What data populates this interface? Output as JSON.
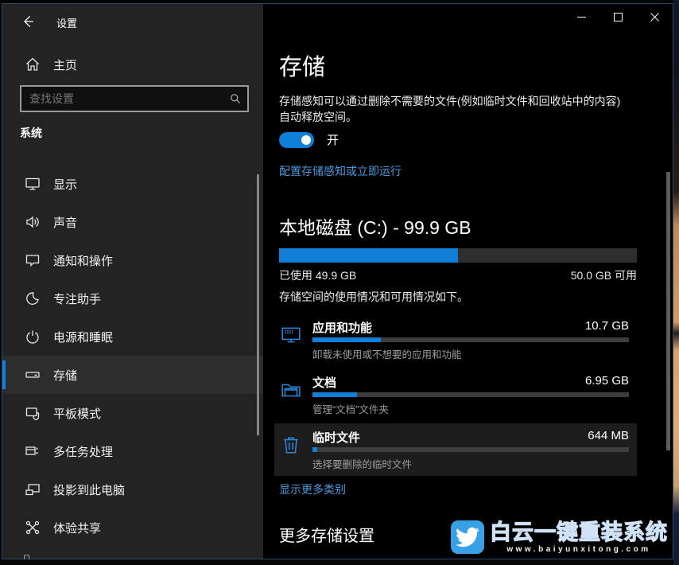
{
  "window": {
    "title": "设置"
  },
  "sidebar": {
    "home_label": "主页",
    "search_placeholder": "查找设置",
    "section_label": "系统",
    "items": [
      {
        "label": "显示",
        "icon": "display-icon",
        "selected": false
      },
      {
        "label": "声音",
        "icon": "sound-icon",
        "selected": false
      },
      {
        "label": "通知和操作",
        "icon": "notifications-icon",
        "selected": false
      },
      {
        "label": "专注助手",
        "icon": "focus-assist-icon",
        "selected": false
      },
      {
        "label": "电源和睡眠",
        "icon": "power-icon",
        "selected": false
      },
      {
        "label": "存储",
        "icon": "storage-icon",
        "selected": true
      },
      {
        "label": "平板模式",
        "icon": "tablet-mode-icon",
        "selected": false
      },
      {
        "label": "多任务处理",
        "icon": "multitasking-icon",
        "selected": false
      },
      {
        "label": "投影到此电脑",
        "icon": "project-icon",
        "selected": false
      },
      {
        "label": "体验共享",
        "icon": "shared-experiences-icon",
        "selected": false
      }
    ]
  },
  "main": {
    "page_title": "存储",
    "storage_sense": {
      "description_line1": "存储感知可以通过删除不需要的文件(例如临时文件和回收站中的内容)",
      "description_line2": "自动释放空间。",
      "toggle_state": "开",
      "toggle_on": true,
      "configure_link": "配置存储感知或立即运行"
    },
    "disk": {
      "title": "本地磁盘 (C:) - 99.9 GB",
      "used_label": "已使用 49.9 GB",
      "free_label": "50.0 GB 可用",
      "used_percent": 50,
      "usage_caption": "存储空间的使用情况和可用情况如下。"
    },
    "categories": [
      {
        "name": "应用和功能",
        "size": "10.7 GB",
        "percent": 21.5,
        "description": "卸载未使用或不想要的应用和功能",
        "icon": "apps-features-icon",
        "highlighted": false
      },
      {
        "name": "文档",
        "size": "6.95 GB",
        "percent": 14,
        "description": "管理“文档”文件夹",
        "icon": "documents-folder-icon",
        "highlighted": false
      },
      {
        "name": "临时文件",
        "size": "644 MB",
        "percent": 1.5,
        "description": "选择要删除的临时文件",
        "icon": "trash-icon",
        "highlighted": true
      }
    ],
    "show_more_link": "显示更多类别",
    "more_settings_title": "更多存储设置"
  },
  "watermark": {
    "title": "白云一键重装系统",
    "url": "www.baiyunxitong.com"
  },
  "colors": {
    "accent_blue": "#0f7fd7",
    "link_blue": "#4a9add",
    "watermark_blue": "#38a1e6",
    "sidebar_bg": "#232323",
    "main_bg": "#000000"
  },
  "icons": {
    "back-icon": "left arrow",
    "home-icon": "house outline",
    "search-icon": "magnifier",
    "minimize-icon": "horizontal line",
    "maximize-icon": "square outline",
    "close-icon": "x cross",
    "toggle-on": "switch on"
  }
}
